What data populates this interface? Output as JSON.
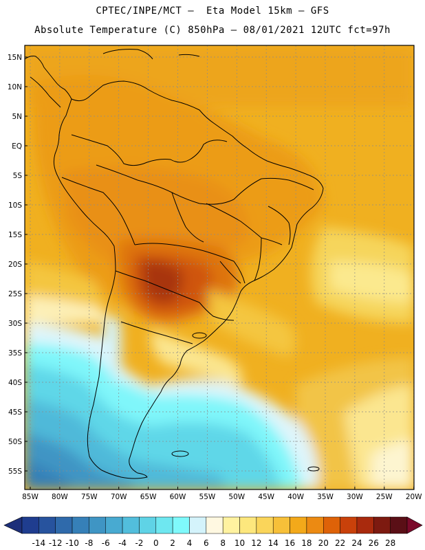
{
  "header": {
    "line1": "CPTEC/INPE/MCT –  Eta Model 15km – GFS",
    "line2": "Absolute Temperature (C) 850hPa – 08/01/2021 12UTC fct=97h"
  },
  "map": {
    "lat_labels": [
      "15N",
      "10N",
      "5N",
      "EQ",
      "5S",
      "10S",
      "15S",
      "20S",
      "25S",
      "30S",
      "35S",
      "40S",
      "45S",
      "50S",
      "55S"
    ],
    "lon_labels": [
      "85W",
      "80W",
      "75W",
      "70W",
      "65W",
      "60W",
      "55W",
      "50W",
      "45W",
      "40W",
      "35W",
      "30W",
      "25W",
      "20W"
    ]
  },
  "legend": {
    "labels": [
      "-14",
      "-12",
      "-10",
      "-8",
      "-6",
      "-4",
      "-2",
      "0",
      "2",
      "4",
      "6",
      "8",
      "10",
      "12",
      "14",
      "16",
      "18",
      "20",
      "22",
      "24",
      "26",
      "28"
    ],
    "colors": [
      "#1f3d8f",
      "#27539e",
      "#2f6aab",
      "#3680b8",
      "#3f95c4",
      "#48aad1",
      "#52bedc",
      "#5fd3e6",
      "#6ee7f0",
      "#7ff9fb",
      "#d4f3fb",
      "#fff8e1",
      "#fff2a0",
      "#fde77d",
      "#fad55a",
      "#f7c039",
      "#f3a91a",
      "#ec8a12",
      "#de6208",
      "#c9410a",
      "#a92a0d",
      "#7d1a10",
      "#5a0f16"
    ],
    "under_color": "#1d2f7a",
    "over_color": "#7a0a2a"
  }
}
